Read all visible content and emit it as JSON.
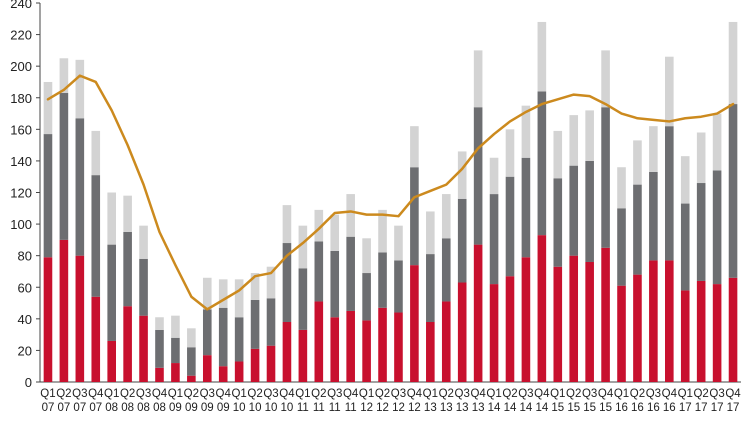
{
  "chart_data": {
    "type": "bar",
    "title": "",
    "xlabel": "",
    "ylabel": "",
    "ylim": [
      0,
      240
    ],
    "yticks": [
      0,
      20,
      40,
      60,
      80,
      100,
      120,
      140,
      160,
      180,
      200,
      220,
      240
    ],
    "grid": false,
    "legend": "none",
    "categories": [
      "Q1 07",
      "Q2 07",
      "Q3 07",
      "Q4 07",
      "Q1 08",
      "Q2 08",
      "Q3 08",
      "Q4 08",
      "Q1 09",
      "Q2 09",
      "Q3 09",
      "Q4 09",
      "Q1 10",
      "Q2 10",
      "Q3 10",
      "Q4 10",
      "Q1 11",
      "Q2 11",
      "Q3 11",
      "Q4 11",
      "Q1 12",
      "Q2 12",
      "Q3 12",
      "Q4 12",
      "Q1 13",
      "Q2 13",
      "Q3 13",
      "Q4 13",
      "Q1 14",
      "Q2 14",
      "Q3 14",
      "Q4 14",
      "Q1 15",
      "Q2 15",
      "Q3 15",
      "Q4 15",
      "Q1 16",
      "Q2 16",
      "Q3 16",
      "Q4 16",
      "Q1 17",
      "Q2 17",
      "Q3 17",
      "Q4 17"
    ],
    "stacked": true,
    "series": [
      {
        "kind": "bar",
        "color": "#c8102e",
        "values": [
          79,
          90,
          80,
          54,
          26,
          48,
          42,
          9,
          12,
          4,
          17,
          10,
          13,
          21,
          23,
          38,
          33,
          51,
          41,
          45,
          39,
          47,
          44,
          74,
          38,
          51,
          63,
          87,
          62,
          67,
          79,
          93,
          73,
          80,
          76,
          85,
          61,
          68,
          77,
          77,
          58,
          64,
          62,
          66
        ]
      },
      {
        "kind": "bar",
        "color": "#6d6e71",
        "values": [
          78,
          93,
          87,
          77,
          61,
          47,
          36,
          24,
          16,
          18,
          29,
          37,
          28,
          31,
          30,
          50,
          39,
          38,
          42,
          47,
          30,
          35,
          33,
          62,
          43,
          40,
          53,
          87,
          57,
          63,
          63,
          91,
          56,
          57,
          64,
          89,
          49,
          57,
          56,
          85,
          55,
          62,
          72,
          110
        ]
      },
      {
        "kind": "bar",
        "color": "#d3d3d3",
        "values": [
          33,
          22,
          37,
          28,
          33,
          23,
          21,
          8,
          14,
          12,
          20,
          18,
          24,
          17,
          20,
          24,
          27,
          20,
          23,
          27,
          22,
          27,
          22,
          26,
          27,
          28,
          30,
          36,
          23,
          30,
          33,
          44,
          30,
          32,
          32,
          36,
          26,
          28,
          29,
          44,
          30,
          32,
          36,
          52
        ]
      },
      {
        "kind": "line",
        "color": "#cc8a1e",
        "values": [
          179,
          185,
          194,
          190,
          172,
          150,
          125,
          95,
          74,
          54,
          46,
          52,
          58,
          67,
          69,
          80,
          88,
          97,
          107,
          108,
          106,
          106,
          105,
          117,
          121,
          125,
          135,
          148,
          157,
          165,
          171,
          176,
          179,
          182,
          181,
          176,
          170,
          167,
          166,
          165,
          167,
          168,
          170,
          176
        ]
      }
    ]
  }
}
